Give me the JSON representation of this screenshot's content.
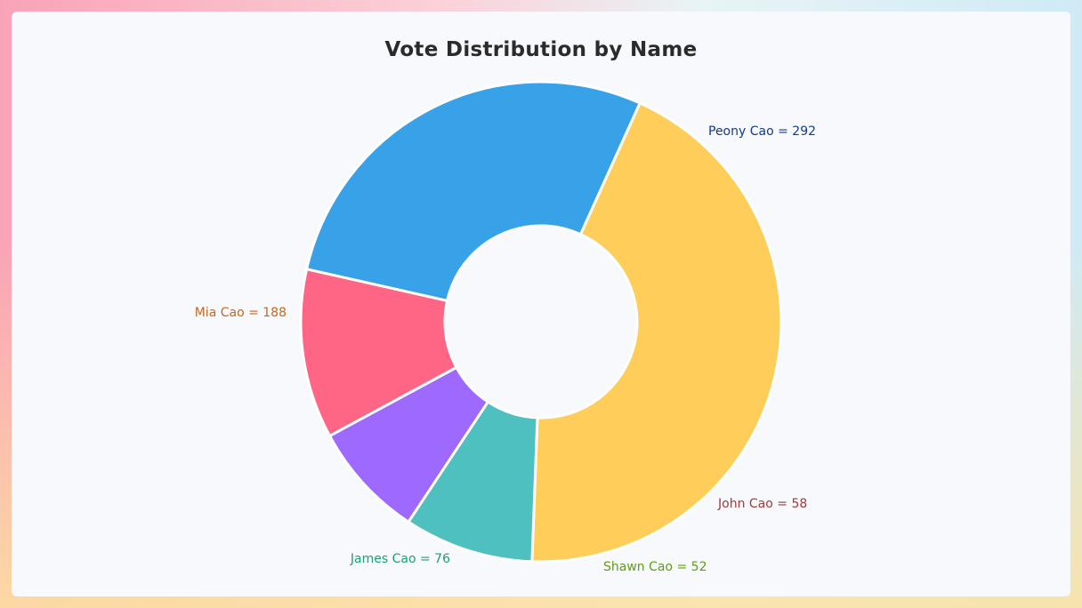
{
  "chart_data": {
    "type": "pie",
    "title": "Vote Distribution by Name",
    "hole": true,
    "categories": [
      "Peony Cao",
      "John Cao",
      "Shawn Cao",
      "James Cao",
      "Mia Cao"
    ],
    "values": [
      292,
      58,
      52,
      76,
      188
    ],
    "colors": [
      "#FFCD5A",
      "#4DC0BF",
      "#9E69FF",
      "#FF6584",
      "#38A2E8"
    ],
    "label_colors": [
      "#123a8a",
      "#a23a3a",
      "#5f9e10",
      "#1f9e75",
      "#c8661e"
    ],
    "labels": [
      "Peony Cao = 292",
      "John Cao = 58",
      "Shawn Cao = 52",
      "James Cao = 76",
      "Mia Cao = 188"
    ]
  }
}
